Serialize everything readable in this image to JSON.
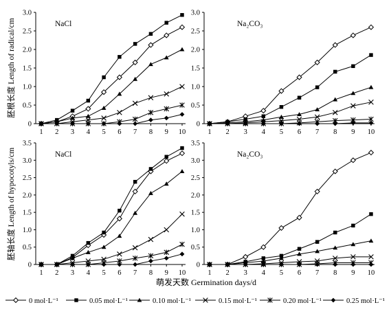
{
  "figure": {
    "xlabel": "萌发天数 Germination days/d",
    "ylabel_top": "胚根长度 Length of radical/cm",
    "ylabel_bottom": "胚轴长度 Length of hypocotyls/cm",
    "legend": [
      {
        "label": "0 mol·L⁻¹",
        "marker": "diamond-open"
      },
      {
        "label": "0.05 mol·L⁻¹",
        "marker": "square"
      },
      {
        "label": "0.10 mol·L⁻¹",
        "marker": "triangle"
      },
      {
        "label": "0.15 mol·L⁻¹",
        "marker": "x"
      },
      {
        "label": "0.20 mol·L⁻¹",
        "marker": "star"
      },
      {
        "label": "0.25 mol·L⁻¹",
        "marker": "circle"
      }
    ]
  },
  "chart_data": [
    {
      "type": "line",
      "panel_label": "NaCl",
      "x": [
        1,
        2,
        3,
        4,
        5,
        6,
        7,
        8,
        9,
        10
      ],
      "ylim": [
        0,
        3.0
      ],
      "yticks": [
        "0",
        "0.5",
        "1.0",
        "1.5",
        "2.0",
        "2.5",
        "3.0"
      ],
      "series": [
        {
          "name": "0 mol·L⁻¹",
          "values": [
            0,
            0.05,
            0.2,
            0.4,
            0.85,
            1.25,
            1.65,
            2.12,
            2.38,
            2.6
          ]
        },
        {
          "name": "0.05 mol·L⁻¹",
          "values": [
            0,
            0.1,
            0.35,
            0.62,
            1.25,
            1.8,
            2.15,
            2.42,
            2.72,
            2.93
          ]
        },
        {
          "name": "0.10 mol·L⁻¹",
          "values": [
            0,
            0.05,
            0.15,
            0.2,
            0.42,
            0.8,
            1.2,
            1.6,
            1.78,
            2.0
          ]
        },
        {
          "name": "0.15 mol·L⁻¹",
          "values": [
            0,
            0,
            0.05,
            0.1,
            0.15,
            0.3,
            0.55,
            0.7,
            0.8,
            1.0
          ]
        },
        {
          "name": "0.20 mol·L⁻¹",
          "values": [
            0,
            0,
            0,
            0,
            0,
            0.05,
            0.12,
            0.3,
            0.4,
            0.5
          ]
        },
        {
          "name": "0.25 mol·L⁻¹",
          "values": [
            0,
            0,
            0,
            0,
            0,
            0,
            0,
            0.1,
            0.15,
            0.25
          ]
        }
      ]
    },
    {
      "type": "line",
      "panel_label": "Na₂CO₃",
      "x": [
        1,
        2,
        3,
        4,
        5,
        6,
        7,
        8,
        9,
        10
      ],
      "ylim": [
        0,
        3.0
      ],
      "yticks": [
        "0",
        "0.5",
        "1.0",
        "1.5",
        "2.0",
        "2.5",
        "3.0"
      ],
      "series": [
        {
          "name": "0 mol·L⁻¹",
          "values": [
            0,
            0.05,
            0.2,
            0.35,
            0.88,
            1.25,
            1.65,
            2.12,
            2.38,
            2.6
          ]
        },
        {
          "name": "0.05 mol·L⁻¹",
          "values": [
            0,
            0.05,
            0.12,
            0.2,
            0.45,
            0.7,
            0.98,
            1.4,
            1.55,
            1.85
          ]
        },
        {
          "name": "0.10 mol·L⁻¹",
          "values": [
            0,
            0.02,
            0.05,
            0.1,
            0.18,
            0.25,
            0.38,
            0.65,
            0.82,
            0.98
          ]
        },
        {
          "name": "0.15 mol·L⁻¹",
          "values": [
            0,
            0,
            0.02,
            0.05,
            0.08,
            0.12,
            0.18,
            0.3,
            0.48,
            0.58
          ]
        },
        {
          "name": "0.20 mol·L⁻¹",
          "values": [
            0,
            0,
            0,
            0,
            0,
            0.02,
            0.05,
            0.08,
            0.1,
            0.12
          ]
        },
        {
          "name": "0.25 mol·L⁻¹",
          "values": [
            0,
            0,
            0,
            0,
            0,
            0,
            0,
            0,
            0.02,
            0.02
          ]
        }
      ]
    },
    {
      "type": "line",
      "panel_label": "NaCl",
      "x": [
        1,
        2,
        3,
        4,
        5,
        6,
        7,
        8,
        9,
        10
      ],
      "ylim": [
        0,
        3.5
      ],
      "yticks": [
        "0",
        "0.5",
        "1.0",
        "1.5",
        "2.0",
        "2.5",
        "3.0",
        "3.5"
      ],
      "series": [
        {
          "name": "0 mol·L⁻¹",
          "values": [
            0,
            0,
            0.2,
            0.55,
            0.85,
            1.32,
            2.1,
            2.68,
            2.98,
            3.2
          ]
        },
        {
          "name": "0.05 mol·L⁻¹",
          "values": [
            0,
            0,
            0.25,
            0.62,
            0.92,
            1.55,
            2.38,
            2.75,
            3.1,
            3.35
          ]
        },
        {
          "name": "0.10 mol·L⁻¹",
          "values": [
            0,
            0,
            0.18,
            0.35,
            0.5,
            0.82,
            1.48,
            2.05,
            2.32,
            2.68
          ]
        },
        {
          "name": "0.15 mol·L⁻¹",
          "values": [
            0,
            0,
            0.05,
            0.1,
            0.15,
            0.3,
            0.48,
            0.72,
            1.0,
            1.45
          ]
        },
        {
          "name": "0.20 mol·L⁻¹",
          "values": [
            0,
            0,
            0,
            0,
            0.05,
            0.1,
            0.18,
            0.25,
            0.35,
            0.58
          ]
        },
        {
          "name": "0.25 mol·L⁻¹",
          "values": [
            0,
            0,
            0,
            0,
            0,
            0,
            0,
            0.1,
            0.18,
            0.3
          ]
        }
      ]
    },
    {
      "type": "line",
      "panel_label": "Na₂CO₃",
      "x": [
        1,
        2,
        3,
        4,
        5,
        6,
        7,
        8,
        9,
        10
      ],
      "ylim": [
        0,
        3.5
      ],
      "yticks": [
        "0",
        "0.5",
        "1.0",
        "1.5",
        "2.0",
        "2.5",
        "3.0",
        "3.5"
      ],
      "series": [
        {
          "name": "0 mol·L⁻¹",
          "values": [
            0,
            0,
            0.22,
            0.5,
            1.05,
            1.35,
            2.1,
            2.68,
            3.0,
            3.22
          ]
        },
        {
          "name": "0.05 mol·L⁻¹",
          "values": [
            0,
            0,
            0.08,
            0.18,
            0.25,
            0.45,
            0.65,
            0.92,
            1.12,
            1.45
          ]
        },
        {
          "name": "0.10 mol·L⁻¹",
          "values": [
            0,
            0,
            0.05,
            0.1,
            0.18,
            0.3,
            0.38,
            0.48,
            0.58,
            0.68
          ]
        },
        {
          "name": "0.15 mol·L⁻¹",
          "values": [
            0,
            0,
            0,
            0.02,
            0.05,
            0.08,
            0.1,
            0.18,
            0.22,
            0.22
          ]
        },
        {
          "name": "0.20 mol·L⁻¹",
          "values": [
            0,
            0,
            0,
            0,
            0,
            0,
            0.02,
            0.05,
            0.05,
            0.05
          ]
        },
        {
          "name": "0.25 mol·L⁻¹",
          "values": [
            0,
            0,
            0,
            0,
            0,
            0,
            0,
            0,
            0,
            0
          ]
        }
      ]
    }
  ]
}
